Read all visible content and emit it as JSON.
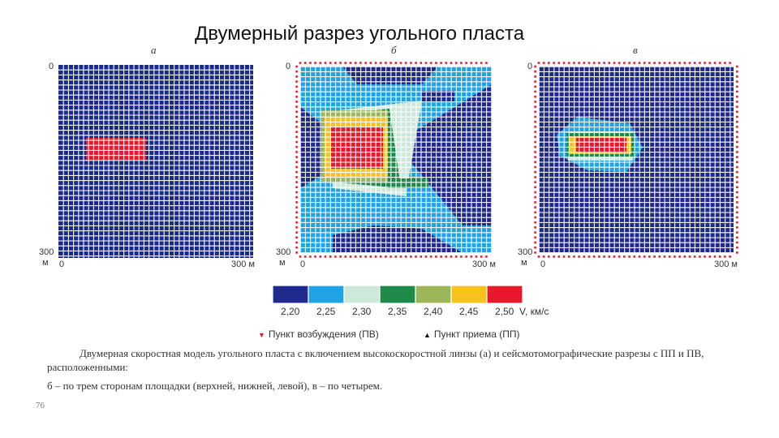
{
  "slide": {
    "title": "Двумерный разрез угольного пласта"
  },
  "panels": [
    {
      "id": "a",
      "letter": "а",
      "y_top": "0",
      "y_bottom": "300",
      "y_unit": "м",
      "x_left": "0",
      "x_right": "300 м",
      "high_velocity_zone": {
        "x": [
          34,
          108
        ],
        "y": [
          90,
          118
        ]
      }
    },
    {
      "id": "b",
      "letter": "б",
      "y_top": "0",
      "y_bottom": "300",
      "y_unit": "м",
      "x_left": "0",
      "x_right": "300 м"
    },
    {
      "id": "c",
      "letter": "в",
      "y_top": "0",
      "y_bottom": "300",
      "y_unit": "м",
      "x_left": "0",
      "x_right": "300 м"
    }
  ],
  "colors": {
    "background": "#1a2a8a",
    "gridline": "#ffffff",
    "zone": "#e8192c",
    "marker_source": "#e8192c",
    "marker_receiver": "#111111",
    "scale": [
      "#1f2a8c",
      "#1fa3e6",
      "#cde8da",
      "#1f8a4a",
      "#9cb65a",
      "#f7c21c",
      "#e8192c"
    ]
  },
  "legend": {
    "values": [
      "2,20",
      "2,25",
      "2,30",
      "2,35",
      "2,40",
      "2,45",
      "2,50"
    ],
    "unit": "V, км/с",
    "source_label": "Пункт возбуждения (ПВ)",
    "receiver_label": "Пункт приема (ПП)",
    "source_symbol": "▼",
    "receiver_symbol": "▲"
  },
  "caption": {
    "line1": "Двумерная скоростная модель угольного пласта с включением высокоскоростной линзы (а) и сейсмотомографические разрезы с ПП и ПВ, расположенными:",
    "line2": "б – по трем сторонам площадки (верхней, нижней, левой), в – по четырем."
  },
  "page_number": "76"
}
